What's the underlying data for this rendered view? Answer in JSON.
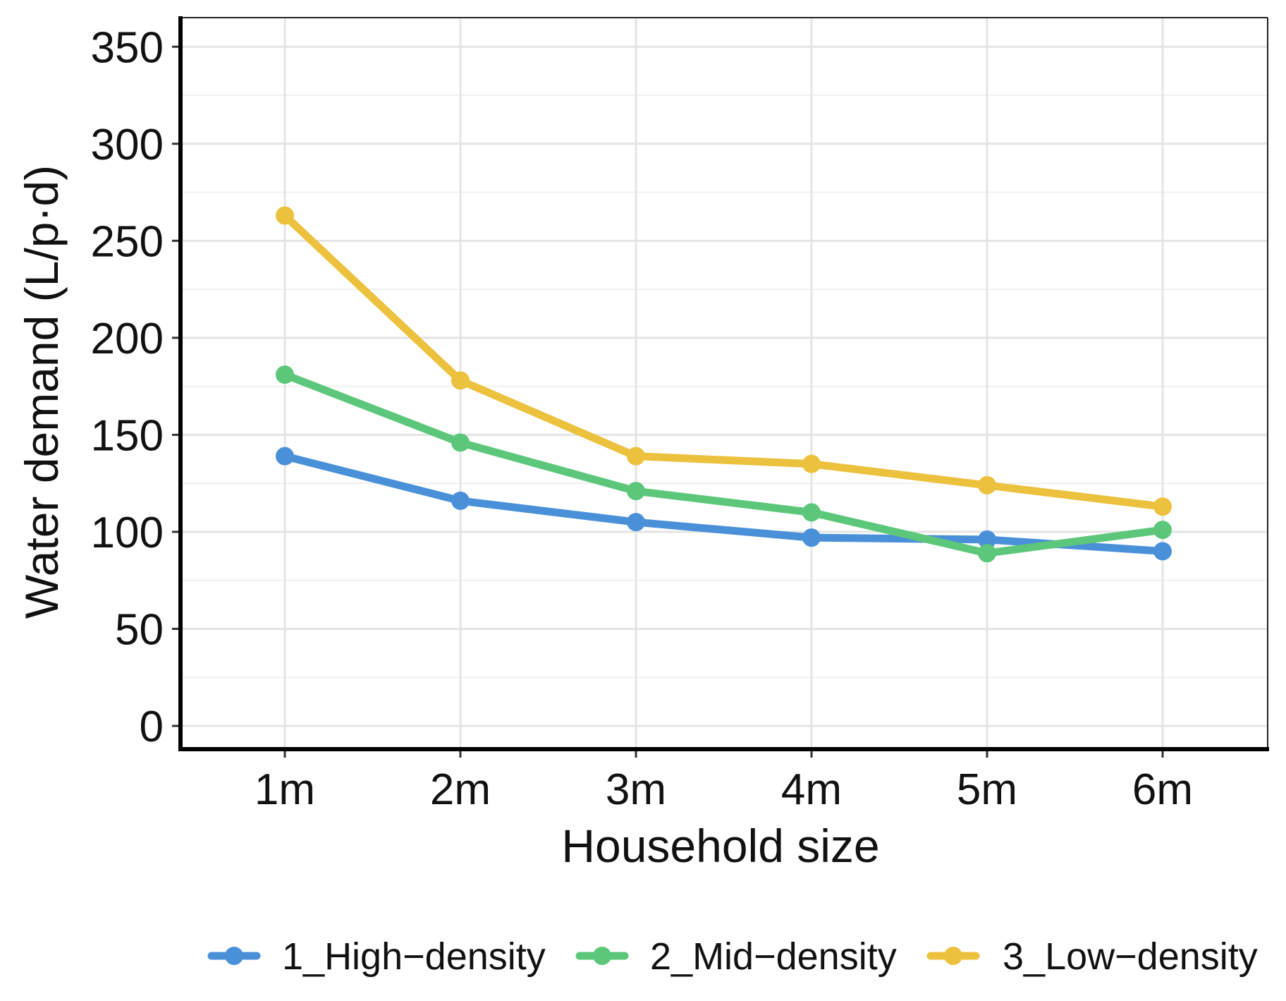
{
  "chart_data": {
    "type": "line",
    "title": "",
    "xlabel": "Household size",
    "ylabel": "Water demand (L/p·d)",
    "categories": [
      "1m",
      "2m",
      "3m",
      "4m",
      "5m",
      "6m"
    ],
    "ylim": [
      -12,
      365
    ],
    "yticks": [
      0,
      50,
      100,
      150,
      200,
      250,
      300,
      350
    ],
    "yticklabels": [
      "0",
      "50",
      "100",
      "150",
      "200",
      "250",
      "300",
      "350"
    ],
    "grid": true,
    "legend_position": "bottom",
    "series": [
      {
        "name": "1_High−density",
        "color": "#4a90d9",
        "values": [
          139,
          116,
          105,
          97,
          96,
          90
        ]
      },
      {
        "name": "2_Mid−density",
        "color": "#5cc77a",
        "values": [
          181,
          146,
          121,
          110,
          89,
          101
        ]
      },
      {
        "name": "3_Low−density",
        "color": "#ecc13e",
        "values": [
          263,
          178,
          139,
          135,
          124,
          113
        ]
      }
    ]
  }
}
